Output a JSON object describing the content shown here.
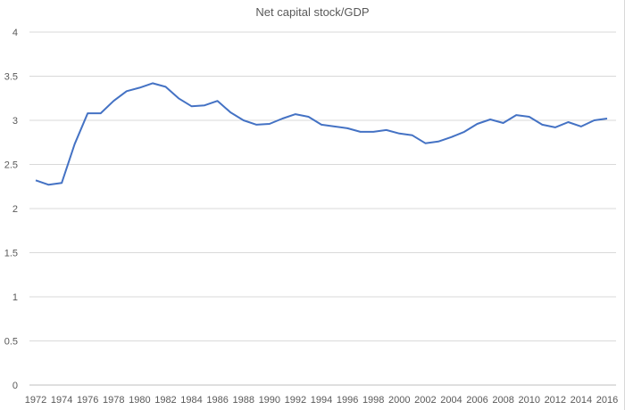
{
  "chart_data": {
    "type": "line",
    "title": "Net capital stock/GDP",
    "xlabel": "",
    "ylabel": "",
    "ylim": [
      0,
      4
    ],
    "yticks": [
      "0",
      "0.5",
      "1",
      "1.5",
      "2",
      "2.5",
      "3",
      "3.5",
      "4"
    ],
    "grid": true,
    "legend": "none",
    "line_color": "#4472C4",
    "x": [
      1972,
      1973,
      1974,
      1975,
      1976,
      1977,
      1978,
      1979,
      1980,
      1981,
      1982,
      1983,
      1984,
      1985,
      1986,
      1987,
      1988,
      1989,
      1990,
      1991,
      1992,
      1993,
      1994,
      1995,
      1996,
      1997,
      1998,
      1999,
      2000,
      2001,
      2002,
      2003,
      2004,
      2005,
      2006,
      2007,
      2008,
      2009,
      2010,
      2011,
      2012,
      2013,
      2014,
      2015,
      2016
    ],
    "xticks": [
      "1972",
      "1974",
      "1976",
      "1978",
      "1980",
      "1982",
      "1984",
      "1986",
      "1988",
      "1990",
      "1992",
      "1994",
      "1996",
      "1998",
      "2000",
      "2002",
      "2004",
      "2006",
      "2008",
      "2010",
      "2012",
      "2014",
      "2016"
    ],
    "series": [
      {
        "values": [
          2.32,
          2.27,
          2.29,
          2.73,
          3.08,
          3.08,
          3.22,
          3.33,
          3.37,
          3.42,
          3.38,
          3.25,
          3.16,
          3.17,
          3.22,
          3.09,
          3.0,
          2.95,
          2.96,
          3.02,
          3.07,
          3.04,
          2.95,
          2.93,
          2.91,
          2.87,
          2.87,
          2.89,
          2.85,
          2.83,
          2.74,
          2.76,
          2.81,
          2.87,
          2.96,
          3.01,
          2.97,
          3.06,
          3.04,
          2.95,
          2.92,
          2.98,
          2.93,
          3.0,
          3.02
        ]
      }
    ]
  }
}
